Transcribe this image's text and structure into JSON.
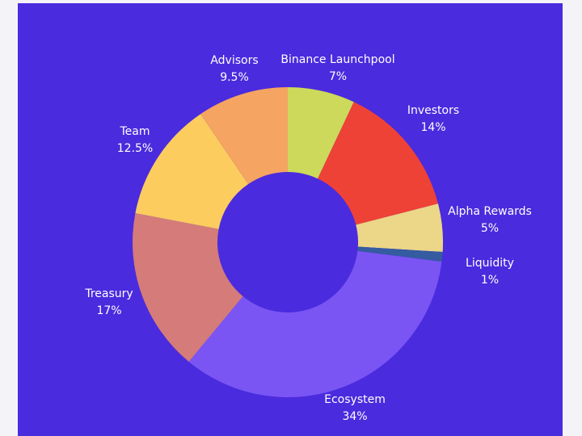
{
  "chart_data": {
    "type": "donut",
    "slices": [
      {
        "label": "Binance Launchpool",
        "percent_text": "7%",
        "value": 7,
        "color": "#ccd95a"
      },
      {
        "label": "Investors",
        "percent_text": "14%",
        "value": 14,
        "color": "#ee4236"
      },
      {
        "label": "Alpha Rewards",
        "percent_text": "5%",
        "value": 5,
        "color": "#ecd688"
      },
      {
        "label": "Liquidity",
        "percent_text": "1%",
        "value": 1,
        "color": "#355ba1"
      },
      {
        "label": "Ecosystem",
        "percent_text": "34%",
        "value": 34,
        "color": "#7a55f4"
      },
      {
        "label": "Treasury",
        "percent_text": "17%",
        "value": 17,
        "color": "#d57b79"
      },
      {
        "label": "Team",
        "percent_text": "12.5%",
        "value": 12.5,
        "color": "#fccc5e"
      },
      {
        "label": "Advisors",
        "percent_text": "9.5%",
        "value": 9.5,
        "color": "#f5a461"
      }
    ]
  },
  "colors": {
    "background": "#4a2bde",
    "label_text": "#ffffff"
  }
}
